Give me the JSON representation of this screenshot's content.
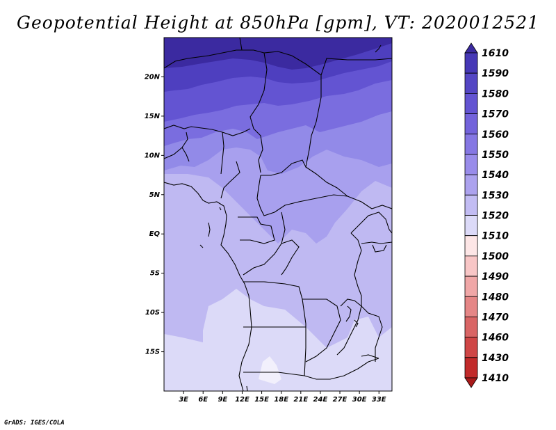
{
  "title": "Geopotential Height at 850hPa [gpm], VT: 2020012521",
  "footer": "GrADS: IGES/COLA",
  "map": {
    "lat_labels": [
      "20N",
      "15N",
      "10N",
      "5N",
      "EQ",
      "5S",
      "10S",
      "15S"
    ],
    "lon_labels": [
      "3E",
      "6E",
      "9E",
      "12E",
      "15E",
      "18E",
      "21E",
      "24E",
      "27E",
      "30E",
      "33E"
    ],
    "lat_values": [
      20,
      15,
      10,
      5,
      0,
      -5,
      -10,
      -15
    ],
    "lon_values": [
      3,
      6,
      9,
      12,
      15,
      18,
      21,
      24,
      27,
      30,
      33
    ],
    "lon_range": [
      0,
      35
    ],
    "lat_range": [
      -20,
      25
    ]
  },
  "colorbar": {
    "levels": [
      1610,
      1590,
      1580,
      1570,
      1560,
      1550,
      1540,
      1530,
      1520,
      1510,
      1500,
      1490,
      1480,
      1470,
      1460,
      1430,
      1410
    ],
    "colors": [
      "#3b2aa0",
      "#4638b6",
      "#5446c4",
      "#6354d2",
      "#7363db",
      "#8577e3",
      "#998cea",
      "#aca2ee",
      "#c2bcf3",
      "#dcdaf8",
      "#fde6e6",
      "#f8c6c6",
      "#f0a7a7",
      "#e58686",
      "#d96565",
      "#cf4646",
      "#c12a2a",
      "#a81a1a"
    ]
  },
  "field_colors": {
    "c1590": "#3b2aa0",
    "c1580": "#4e3fbf",
    "c1570": "#6354d2",
    "c1560": "#7a6ddf",
    "c1550": "#928ae8",
    "c1540": "#a8a0ee",
    "c1530": "#bfb9f2",
    "c1520": "#dcdaf8",
    "c1510": "#f2f0fc"
  }
}
